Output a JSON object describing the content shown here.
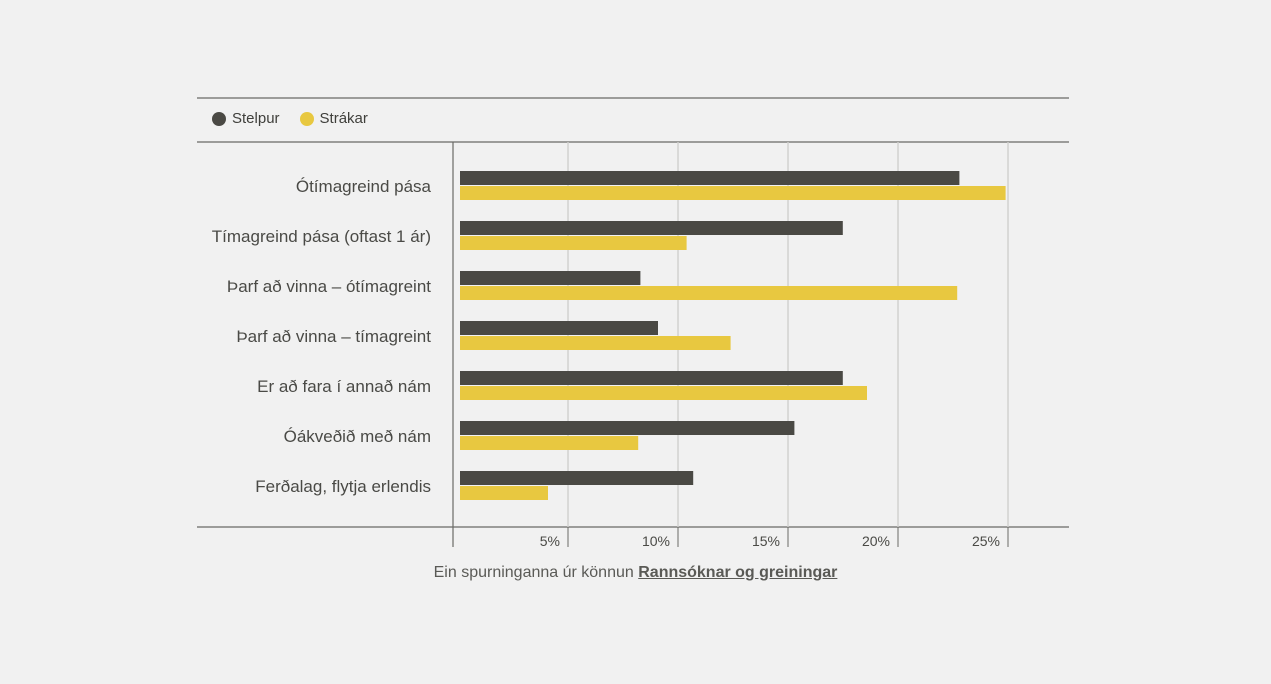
{
  "legend": {
    "items": [
      {
        "label": "Stelpur",
        "color": "#4a4944"
      },
      {
        "label": "Strákar",
        "color": "#e8c840"
      }
    ]
  },
  "caption": {
    "text": "Ein spurninganna úr könnun",
    "link": "Rannsóknar og greiningar"
  },
  "chart_data": {
    "type": "bar",
    "orientation": "horizontal",
    "categories": [
      "Ótímagreind pása",
      "Tímagreind pása (oftast 1 ár)",
      "Þarf að vinna – ótímagreint",
      "Þarf að vinna – tímagreint",
      "Er að fara í annað nám",
      "Óákveðið með nám",
      "Ferðalag, flytja erlendis"
    ],
    "series": [
      {
        "name": "Stelpur",
        "color": "#4a4944",
        "values": [
          22.7,
          17.4,
          8.2,
          9.0,
          17.4,
          15.2,
          10.6
        ]
      },
      {
        "name": "Strákar",
        "color": "#e8c840",
        "values": [
          24.8,
          10.3,
          22.6,
          12.3,
          18.5,
          8.1,
          4.0
        ]
      }
    ],
    "xlim": [
      0,
      27.5
    ],
    "xticks": [
      5,
      10,
      15,
      20,
      25
    ],
    "xtick_labels": [
      "5%",
      "10%",
      "15%",
      "20%",
      "25%"
    ],
    "grid": true,
    "legend_position": "top-left"
  }
}
